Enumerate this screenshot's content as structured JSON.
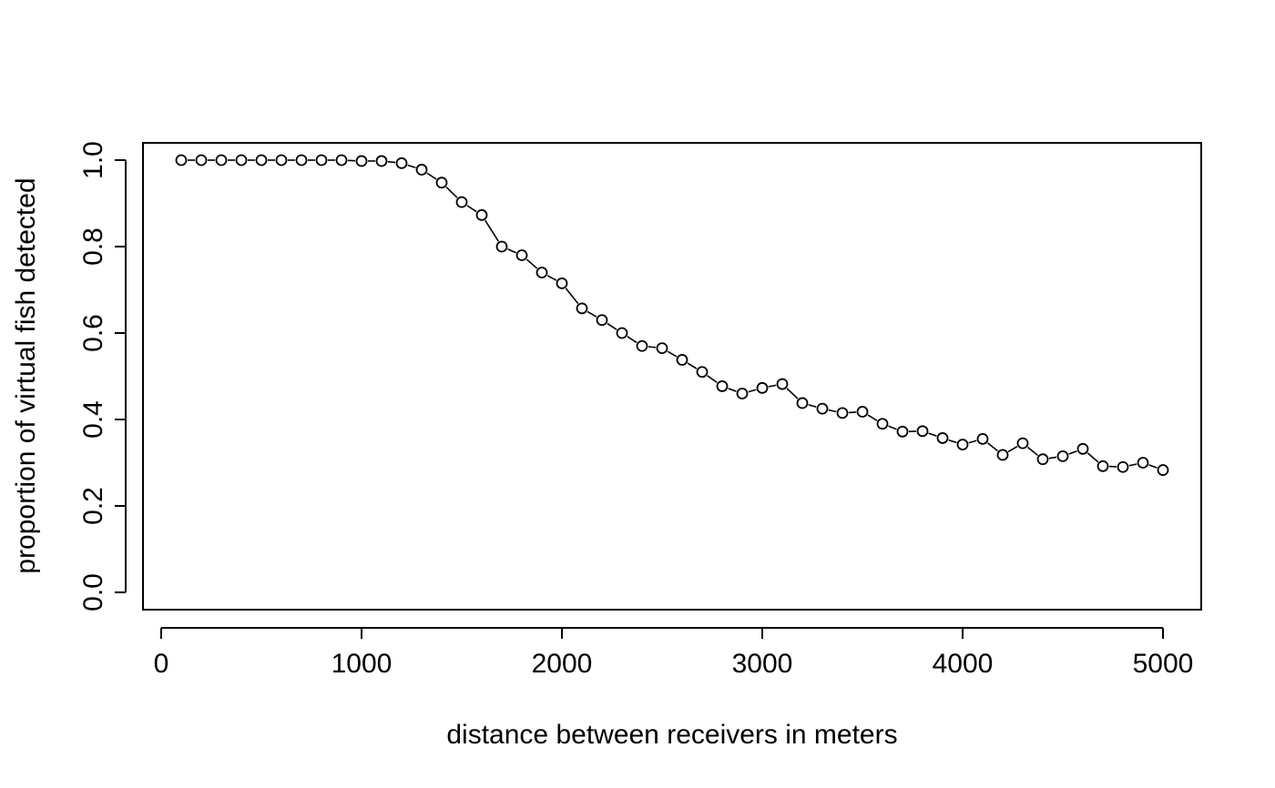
{
  "chart_data": {
    "type": "line",
    "title": "",
    "xlabel": "distance between receivers in meters",
    "ylabel": "proportion of virtual fish detected",
    "xlim": [
      0,
      5000
    ],
    "ylim": [
      0.0,
      1.0
    ],
    "x_ticks": [
      "0",
      "1000",
      "2000",
      "3000",
      "4000",
      "5000"
    ],
    "y_ticks": [
      "0.0",
      "0.2",
      "0.4",
      "0.6",
      "0.8",
      "1.0"
    ],
    "grid": false,
    "marker": "open-circle",
    "colors": {
      "line": "#000000",
      "marker": "#000000",
      "background": "#ffffff"
    },
    "series": [
      {
        "x": [
          100,
          200,
          300,
          400,
          500,
          600,
          700,
          800,
          900,
          1000,
          1100,
          1200,
          1300,
          1400,
          1500,
          1600,
          1700,
          1800,
          1900,
          2000,
          2100,
          2200,
          2300,
          2400,
          2500,
          2600,
          2700,
          2800,
          2900,
          3000,
          3100,
          3200,
          3300,
          3400,
          3500,
          3600,
          3700,
          3800,
          3900,
          4000,
          4100,
          4200,
          4300,
          4400,
          4500,
          4600,
          4700,
          4800,
          4900,
          5000
        ],
        "y": [
          1.0,
          1.0,
          1.0,
          1.0,
          1.0,
          1.0,
          1.0,
          1.0,
          1.0,
          0.998,
          0.998,
          0.993,
          0.978,
          0.948,
          0.903,
          0.873,
          0.8,
          0.78,
          0.74,
          0.715,
          0.657,
          0.63,
          0.6,
          0.57,
          0.565,
          0.538,
          0.51,
          0.477,
          0.46,
          0.473,
          0.482,
          0.438,
          0.425,
          0.415,
          0.418,
          0.39,
          0.372,
          0.373,
          0.357,
          0.342,
          0.355,
          0.318,
          0.345,
          0.308,
          0.315,
          0.332,
          0.292,
          0.29,
          0.3,
          0.283
        ]
      }
    ]
  }
}
